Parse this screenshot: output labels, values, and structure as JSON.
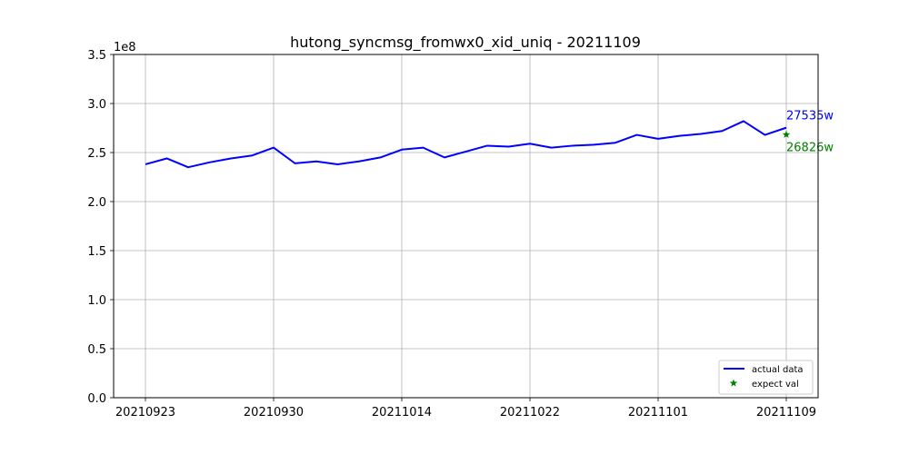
{
  "chart_data": {
    "type": "line",
    "title": "hutong_syncmsg_fromwx0_xid_uniq - 20211109",
    "xlabel": "",
    "ylabel": "",
    "y_scale_label": "1e8",
    "ylim": [
      0,
      3.5
    ],
    "y_ticks": [
      "0.0",
      "0.5",
      "1.0",
      "1.5",
      "2.0",
      "2.5",
      "3.0",
      "3.5"
    ],
    "x_tick_labels": [
      "20210923",
      "20210930",
      "20211014",
      "20211022",
      "20211101",
      "20211109"
    ],
    "grid": true,
    "legend_position": "bottom-right",
    "series": [
      {
        "name": "actual data",
        "color": "#0000ff",
        "marker": "line",
        "values": [
          2.38,
          2.44,
          2.35,
          2.4,
          2.44,
          2.47,
          2.55,
          2.39,
          2.41,
          2.38,
          2.41,
          2.45,
          2.53,
          2.55,
          2.45,
          2.51,
          2.57,
          2.56,
          2.59,
          2.55,
          2.57,
          2.58,
          2.6,
          2.68,
          2.64,
          2.67,
          2.69,
          2.72,
          2.82,
          2.68,
          2.7535
        ]
      },
      {
        "name": "expect val",
        "color": "#008000",
        "marker": "star",
        "values": [
          2.6826
        ]
      }
    ],
    "annotations": [
      {
        "text": "27535w",
        "color": "#0000ff"
      },
      {
        "text": "26826w",
        "color": "#008000"
      }
    ]
  }
}
